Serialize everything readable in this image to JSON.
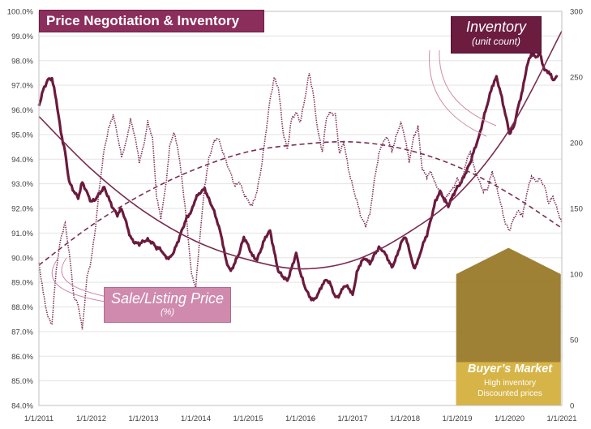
{
  "colors": {
    "inventory": "#6b1a3d",
    "price": "#7a2c50",
    "trend": "#7a2c50",
    "title_bg": "#8b2e5c",
    "inv_box": "#6b1c3f",
    "sale_box": "#cf8aad",
    "arrow_dark": "#9a7a2a",
    "arrow_light": "#d7b447"
  },
  "annotations": {
    "inventory_title": "Inventory",
    "inventory_sub": "(unit count)",
    "sale_title": "Sale/Listing Price",
    "sale_sub": "(%)",
    "buyer_title": "Buyer’s Market",
    "buyer_sub1": "High inventory",
    "buyer_sub2": "Discounted prices"
  },
  "buyer_market_range": {
    "x_start": 2018.98,
    "x_end": 2020.98,
    "inventory_top": 100,
    "inventory_peak": 120,
    "label_floor": 33
  },
  "chart_data": {
    "type": "line",
    "title": "Price Negotiation & Inventory",
    "x_tick_labels": [
      "1/1/2011",
      "1/1/2012",
      "1/1/2013",
      "1/1/2014",
      "1/1/2015",
      "1/1/2016",
      "1/1/2017",
      "1/1/2018",
      "1/1/2019",
      "1/1/2020",
      "1/1/2021"
    ],
    "x_range": [
      2011,
      2021
    ],
    "y_left": {
      "label": "Sale/Listing Price (%)",
      "range": [
        84,
        100
      ],
      "step": 1,
      "ticks": [
        "84.0%",
        "85.0%",
        "86.0%",
        "87.0%",
        "88.0%",
        "89.0%",
        "90.0%",
        "91.0%",
        "92.0%",
        "93.0%",
        "94.0%",
        "95.0%",
        "96.0%",
        "97.0%",
        "98.0%",
        "99.0%",
        "100.0%"
      ]
    },
    "y_right": {
      "label": "Inventory (unit count)",
      "range": [
        0,
        300
      ],
      "step": 50,
      "ticks": [
        "0",
        "50",
        "100",
        "150",
        "200",
        "250",
        "300"
      ]
    },
    "series": [
      {
        "name": "Inventory",
        "axis": "right",
        "style": "solid-thick",
        "x": [
          2011.0,
          2011.08,
          2011.17,
          2011.25,
          2011.33,
          2011.42,
          2011.5,
          2011.58,
          2011.67,
          2011.75,
          2011.83,
          2011.92,
          2012.0,
          2012.08,
          2012.17,
          2012.25,
          2012.33,
          2012.42,
          2012.5,
          2012.58,
          2012.67,
          2012.75,
          2012.83,
          2012.92,
          2013.0,
          2013.08,
          2013.17,
          2013.25,
          2013.33,
          2013.42,
          2013.5,
          2013.58,
          2013.67,
          2013.75,
          2013.83,
          2013.92,
          2014.0,
          2014.08,
          2014.17,
          2014.25,
          2014.33,
          2014.42,
          2014.5,
          2014.58,
          2014.67,
          2014.75,
          2014.83,
          2014.92,
          2015.0,
          2015.08,
          2015.17,
          2015.25,
          2015.33,
          2015.42,
          2015.5,
          2015.58,
          2015.67,
          2015.75,
          2015.83,
          2015.92,
          2016.0,
          2016.08,
          2016.17,
          2016.25,
          2016.33,
          2016.42,
          2016.5,
          2016.58,
          2016.67,
          2016.75,
          2016.83,
          2016.92,
          2017.0,
          2017.08,
          2017.17,
          2017.25,
          2017.33,
          2017.42,
          2017.5,
          2017.58,
          2017.67,
          2017.75,
          2017.83,
          2017.92,
          2018.0,
          2018.08,
          2018.17,
          2018.25,
          2018.33,
          2018.42,
          2018.5,
          2018.58,
          2018.67,
          2018.75,
          2018.83,
          2018.92,
          2019.0,
          2019.08,
          2019.17,
          2019.25,
          2019.33,
          2019.42,
          2019.5,
          2019.58,
          2019.67,
          2019.75,
          2019.83,
          2019.92,
          2020.0,
          2020.08,
          2020.17,
          2020.25,
          2020.33,
          2020.42,
          2020.5,
          2020.58,
          2020.67,
          2020.75,
          2020.83,
          2020.92
        ],
        "values": [
          228,
          240,
          248,
          249,
          233,
          208,
          193,
          170,
          163,
          158,
          170,
          162,
          155,
          157,
          162,
          166,
          158,
          150,
          145,
          150,
          139,
          128,
          124,
          123,
          125,
          126,
          124,
          120,
          119,
          113,
          112,
          117,
          126,
          135,
          143,
          148,
          158,
          162,
          165,
          157,
          150,
          139,
          127,
          110,
          102,
          109,
          116,
          128,
          122,
          114,
          111,
          119,
          128,
          133,
          117,
          102,
          98,
          95,
          104,
          116,
          101,
          91,
          83,
          80,
          84,
          92,
          96,
          92,
          82,
          84,
          91,
          90,
          84,
          101,
          110,
          112,
          108,
          115,
          120,
          118,
          112,
          105,
          112,
          123,
          129,
          119,
          104,
          110,
          121,
          130,
          142,
          155,
          163,
          157,
          152,
          160,
          166,
          170,
          178,
          185,
          195,
          205,
          218,
          230,
          243,
          250,
          238,
          222,
          207,
          212,
          228,
          240,
          258,
          268,
          265,
          268,
          255,
          254,
          248,
          250
        ]
      },
      {
        "name": "Sale/Listing Price",
        "axis": "left",
        "style": "dotted",
        "x": [
          2011.0,
          2011.08,
          2011.17,
          2011.25,
          2011.33,
          2011.42,
          2011.5,
          2011.58,
          2011.67,
          2011.75,
          2011.83,
          2011.92,
          2012.0,
          2012.08,
          2012.17,
          2012.25,
          2012.33,
          2012.42,
          2012.5,
          2012.58,
          2012.67,
          2012.75,
          2012.83,
          2012.92,
          2013.0,
          2013.08,
          2013.17,
          2013.25,
          2013.33,
          2013.42,
          2013.5,
          2013.58,
          2013.67,
          2013.75,
          2013.83,
          2013.92,
          2014.0,
          2014.08,
          2014.17,
          2014.25,
          2014.33,
          2014.42,
          2014.5,
          2014.58,
          2014.67,
          2014.75,
          2014.83,
          2014.92,
          2015.0,
          2015.08,
          2015.17,
          2015.25,
          2015.33,
          2015.42,
          2015.5,
          2015.58,
          2015.67,
          2015.75,
          2015.83,
          2015.92,
          2016.0,
          2016.08,
          2016.17,
          2016.25,
          2016.33,
          2016.42,
          2016.5,
          2016.58,
          2016.67,
          2016.75,
          2016.83,
          2016.92,
          2017.0,
          2017.08,
          2017.17,
          2017.25,
          2017.33,
          2017.42,
          2017.5,
          2017.58,
          2017.67,
          2017.75,
          2017.83,
          2017.92,
          2018.0,
          2018.08,
          2018.17,
          2018.25,
          2018.33,
          2018.42,
          2018.5,
          2018.58,
          2018.67,
          2018.75,
          2018.83,
          2018.92,
          2019.0,
          2019.08,
          2019.17,
          2019.25,
          2019.33,
          2019.42,
          2019.5,
          2019.58,
          2019.67,
          2019.75,
          2019.83,
          2019.92,
          2020.0,
          2020.08,
          2020.17,
          2020.25,
          2020.33,
          2020.42,
          2020.5,
          2020.58,
          2020.67,
          2020.75,
          2020.83,
          2020.92,
          2021.0
        ],
        "values": [
          89.8,
          88.6,
          87.6,
          87.3,
          89.5,
          90.8,
          91.4,
          90.2,
          88.4,
          88.1,
          87.1,
          89.2,
          89.9,
          91.2,
          93.1,
          94.4,
          95.2,
          95.8,
          95.0,
          94.1,
          94.7,
          95.6,
          95.0,
          93.9,
          94.5,
          95.5,
          94.9,
          92.5,
          91.6,
          92.8,
          94.5,
          95.1,
          94.3,
          92.9,
          91.4,
          89.3,
          88.8,
          90.9,
          92.9,
          94.0,
          94.6,
          94.9,
          94.4,
          93.9,
          93.4,
          92.9,
          93.1,
          92.6,
          92.3,
          92.1,
          92.7,
          93.6,
          94.9,
          96.4,
          97.3,
          96.9,
          95.1,
          94.4,
          95.6,
          95.9,
          95.5,
          96.4,
          97.5,
          96.6,
          95.2,
          94.3,
          95.7,
          95.9,
          95.8,
          94.2,
          94.7,
          93.6,
          92.9,
          92.3,
          91.6,
          91.3,
          91.8,
          93.2,
          94.2,
          94.7,
          94.9,
          94.3,
          94.9,
          95.5,
          94.9,
          93.9,
          94.9,
          95.3,
          93.6,
          93.3,
          93.5,
          93.0,
          92.7,
          92.3,
          92.6,
          92.8,
          93.2,
          93.0,
          93.9,
          94.3,
          93.6,
          93.1,
          92.7,
          92.8,
          93.5,
          92.9,
          92.2,
          91.4,
          91.1,
          91.6,
          91.9,
          91.7,
          92.6,
          93.3,
          93.1,
          93.2,
          92.9,
          92.2,
          92.5,
          91.9,
          91.4
        ]
      },
      {
        "name": "Inventory trend (quadratic)",
        "axis": "right",
        "style": "solid-thin",
        "x": [
          2011,
          2012,
          2013,
          2014,
          2015,
          2016,
          2017,
          2018,
          2019,
          2020,
          2021
        ],
        "values": [
          220,
          180,
          148,
          125,
          111,
          104,
          110,
          130,
          160,
          210,
          285
        ]
      },
      {
        "name": "Sale/Listing Price trend (quadratic)",
        "axis": "left",
        "style": "dashed",
        "x": [
          2011,
          2012,
          2013,
          2014,
          2015,
          2016,
          2017,
          2018,
          2019,
          2020,
          2021
        ],
        "values": [
          89.7,
          91.3,
          92.6,
          93.6,
          94.3,
          94.6,
          94.7,
          94.4,
          93.7,
          92.6,
          91.2
        ]
      }
    ]
  }
}
